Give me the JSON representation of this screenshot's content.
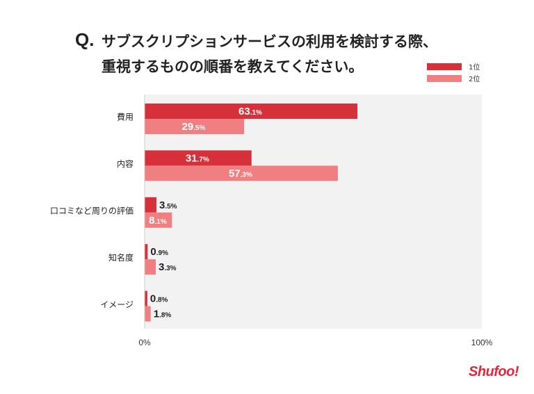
{
  "title": {
    "prefix": "Q.",
    "line1": "サブスクリプションサービスの利用を検討する際、",
    "line2": "重視するものの順番を教えてください。"
  },
  "logo_text": "Shufoo!",
  "colors": {
    "rank1": "#d6303a",
    "rank2": "#f07f82",
    "plot_bg": "#f2f2f2",
    "value_on_bar": "#ffffff",
    "value_off_bar": "#222222"
  },
  "chart_data": {
    "type": "bar",
    "orientation": "horizontal",
    "categories": [
      "費用",
      "内容",
      "口コミなど周りの評価",
      "知名度",
      "イメージ"
    ],
    "series": [
      {
        "name": "1位",
        "values": [
          63.1,
          31.7,
          3.5,
          0.9,
          0.8
        ]
      },
      {
        "name": "2位",
        "values": [
          29.5,
          57.3,
          8.1,
          3.3,
          1.8
        ]
      }
    ],
    "xlim": [
      0,
      100
    ],
    "x_tick_labels": [
      "0%",
      "100%"
    ],
    "value_suffix": "%",
    "legend_position": "top-right",
    "grid": false
  }
}
